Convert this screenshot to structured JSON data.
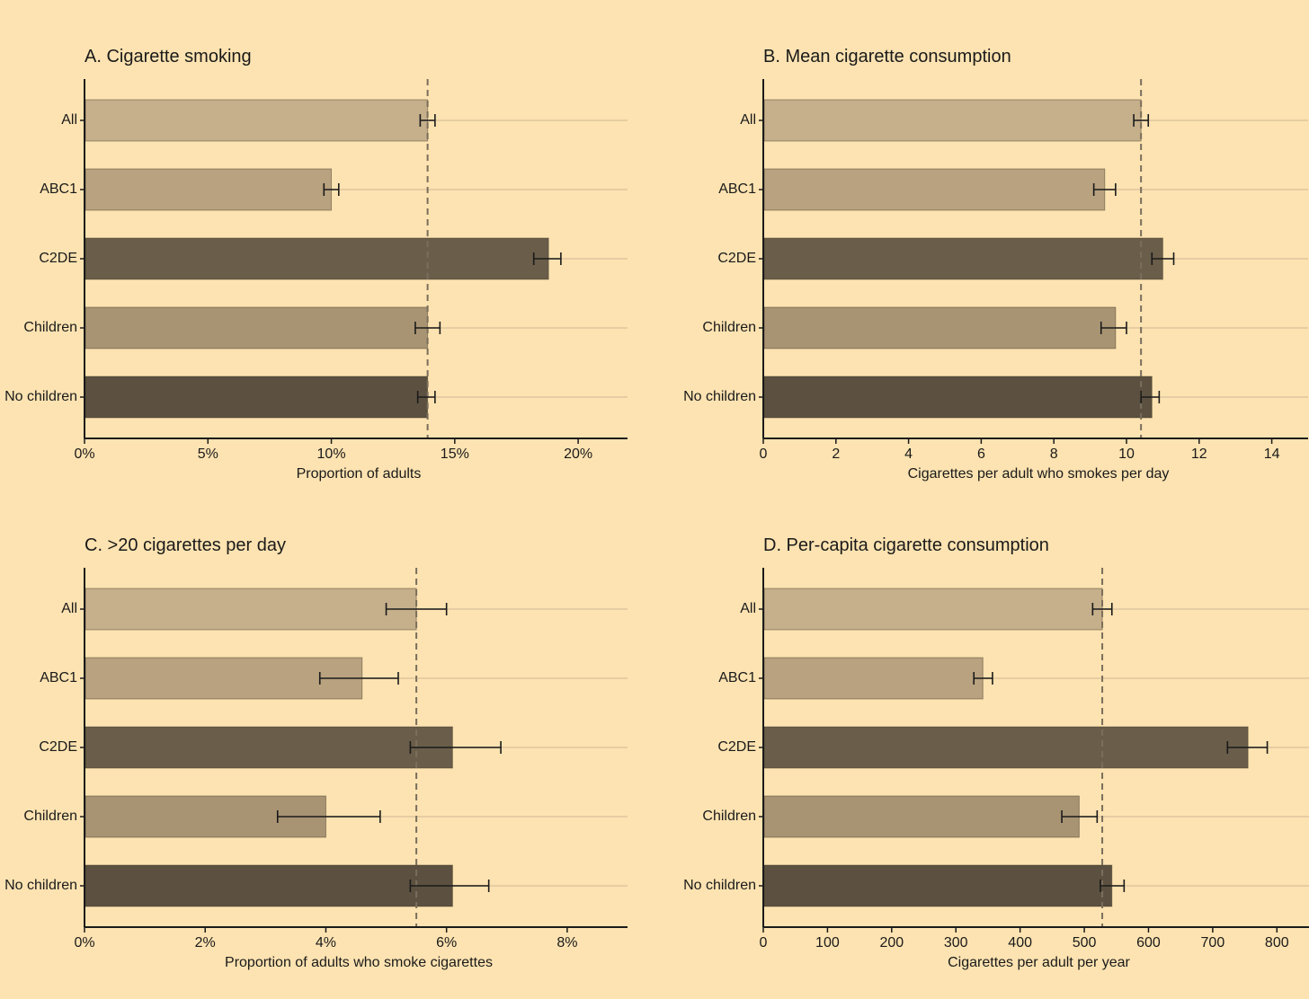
{
  "colors": {
    "background": "#fde3b1",
    "bar_light": "#c6b08b",
    "bar_medium": "#b8a27f",
    "bar_dark": "#6a5e4a",
    "bar_children": "#a89473",
    "bar_nochildren": "#5c5140",
    "gridline": "#e6cda3",
    "reference_line": "#7a6e5c",
    "axis": "#1a1a1a"
  },
  "chart_data": [
    {
      "id": "A",
      "type": "bar",
      "orientation": "horizontal",
      "title": "A. Cigarette smoking",
      "xlabel": "Proportion of adults",
      "xlim": [
        0,
        22
      ],
      "xticks": [
        0,
        5,
        10,
        15,
        20
      ],
      "xtick_labels": [
        "0%",
        "5%",
        "10%",
        "15%",
        "20%"
      ],
      "reference_value": 13.9,
      "categories": [
        "All",
        "ABC1",
        "C2DE",
        "Children",
        "No children"
      ],
      "values": [
        13.9,
        10.0,
        18.8,
        13.9,
        13.9
      ],
      "ci_low": [
        13.6,
        9.7,
        18.2,
        13.4,
        13.5
      ],
      "ci_high": [
        14.2,
        10.3,
        19.3,
        14.4,
        14.2
      ]
    },
    {
      "id": "B",
      "type": "bar",
      "orientation": "horizontal",
      "title": "B. Mean cigarette consumption",
      "xlabel": "Cigarettes per adult who smokes per day",
      "xlim": [
        0,
        15
      ],
      "xticks": [
        0,
        2,
        4,
        6,
        8,
        10,
        12,
        14
      ],
      "xtick_labels": [
        "0",
        "2",
        "4",
        "6",
        "8",
        "10",
        "12",
        "14"
      ],
      "reference_value": 10.4,
      "categories": [
        "All",
        "ABC1",
        "C2DE",
        "Children",
        "No children"
      ],
      "values": [
        10.4,
        9.4,
        11.0,
        9.7,
        10.7
      ],
      "ci_low": [
        10.2,
        9.1,
        10.7,
        9.3,
        10.4
      ],
      "ci_high": [
        10.6,
        9.7,
        11.3,
        10.0,
        10.9
      ]
    },
    {
      "id": "C",
      "type": "bar",
      "orientation": "horizontal",
      "title": "C. >20 cigarettes per day",
      "xlabel": "Proportion of adults who smoke cigarettes",
      "xlim": [
        0,
        9
      ],
      "xticks": [
        0,
        2,
        4,
        6,
        8
      ],
      "xtick_labels": [
        "0%",
        "2%",
        "4%",
        "6%",
        "8%"
      ],
      "reference_value": 5.5,
      "categories": [
        "All",
        "ABC1",
        "C2DE",
        "Children",
        "No children"
      ],
      "values": [
        5.5,
        4.6,
        6.1,
        4.0,
        6.1
      ],
      "ci_low": [
        5.0,
        3.9,
        5.4,
        3.2,
        5.4
      ],
      "ci_high": [
        6.0,
        5.2,
        6.9,
        4.9,
        6.7
      ]
    },
    {
      "id": "D",
      "type": "bar",
      "orientation": "horizontal",
      "title": "D. Per-capita cigarette consumption",
      "xlabel": "Cigarettes per adult per year",
      "xlim": [
        0,
        850
      ],
      "xticks": [
        0,
        100,
        200,
        300,
        400,
        500,
        600,
        700,
        800
      ],
      "xtick_labels": [
        "0",
        "100",
        "200",
        "300",
        "400",
        "500",
        "600",
        "700",
        "800"
      ],
      "reference_value": 528,
      "categories": [
        "All",
        "ABC1",
        "C2DE",
        "Children",
        "No children"
      ],
      "values": [
        528,
        342,
        755,
        492,
        543
      ],
      "ci_low": [
        513,
        328,
        723,
        465,
        525
      ],
      "ci_high": [
        543,
        357,
        785,
        520,
        562
      ]
    }
  ]
}
